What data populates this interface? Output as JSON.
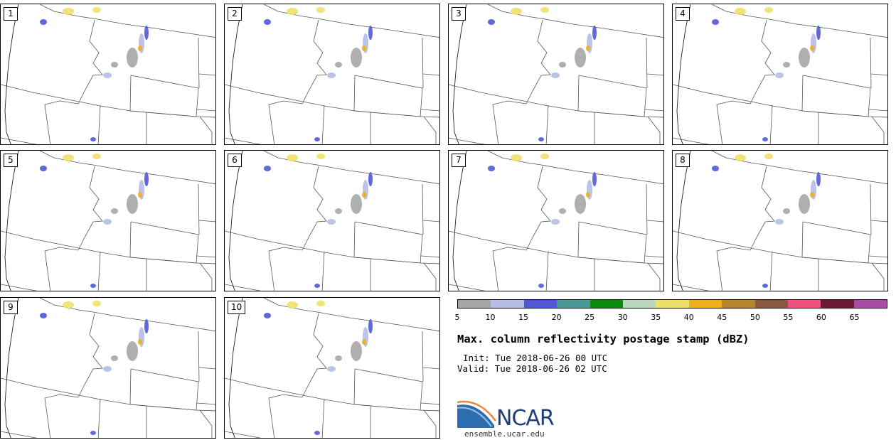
{
  "panels": [
    {
      "label": "1"
    },
    {
      "label": "2"
    },
    {
      "label": "3"
    },
    {
      "label": "4"
    },
    {
      "label": "5"
    },
    {
      "label": "6"
    },
    {
      "label": "7"
    },
    {
      "label": "8"
    },
    {
      "label": "9"
    },
    {
      "label": "10"
    }
  ],
  "colorbar": {
    "ticks": [
      "5",
      "10",
      "15",
      "20",
      "25",
      "30",
      "35",
      "40",
      "45",
      "50",
      "55",
      "60",
      "65"
    ],
    "colors": [
      "#a6a6a6",
      "#b5bde6",
      "#4f58d6",
      "#4a9797",
      "#098a09",
      "#bcd8ba",
      "#ede06a",
      "#edaf1d",
      "#b7842e",
      "#8c573a",
      "#f0507e",
      "#6b1736",
      "#a74ca8"
    ]
  },
  "title": "Max. column reflectivity postage stamp (dBZ)",
  "init": "Init: Tue 2018-06-26 00 UTC",
  "valid": "Valid: Tue 2018-06-26 02 UTC",
  "logo": {
    "text": "NCAR",
    "url": "ensemble.ucar.edu"
  }
}
